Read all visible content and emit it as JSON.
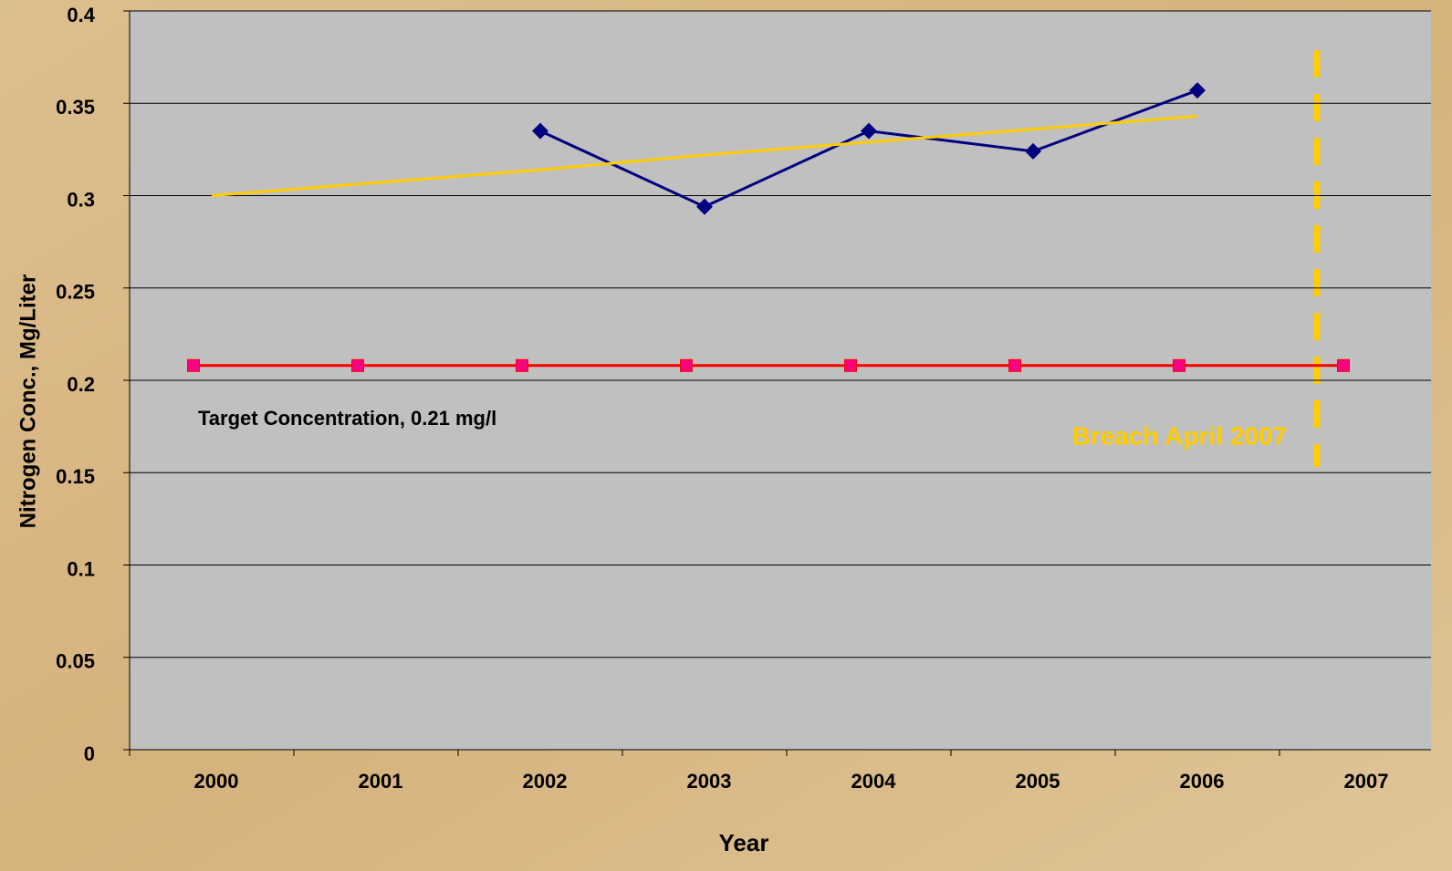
{
  "chart_data": {
    "type": "line",
    "y_label": "Nitrogen Conc., Mg/Liter",
    "x_label": "Year",
    "categories": [
      "2000",
      "2001",
      "2002",
      "2003",
      "2004",
      "2005",
      "2006",
      "2007"
    ],
    "series": [
      {
        "color": "#000080",
        "marker": "diamond",
        "values": [
          null,
          null,
          0.335,
          0.294,
          0.335,
          0.324,
          0.357,
          null
        ]
      },
      {
        "color": "#ff0000",
        "marker": "square",
        "values": [
          0.208,
          0.208,
          0.208,
          0.208,
          0.208,
          0.208,
          0.208,
          0.208
        ]
      },
      {
        "color": "#ffcc00",
        "marker": "none",
        "values": [
          0.3,
          0.307,
          0.314,
          0.322,
          0.329,
          0.336,
          0.343,
          null
        ]
      }
    ],
    "ylim": [
      0,
      0.4
    ],
    "yticks": [
      0,
      0.05,
      0.1,
      0.15,
      0.2,
      0.25,
      0.3,
      0.35,
      0.4
    ],
    "grid": true,
    "annotations": [
      "Target Concentration, 0.21 mg/l",
      "Breach April 2007"
    ]
  }
}
